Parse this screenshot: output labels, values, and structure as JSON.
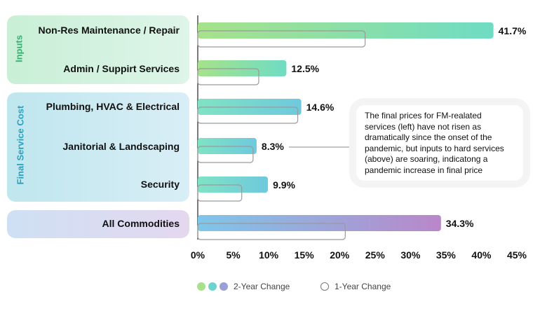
{
  "groups": {
    "inputs": "Inputs",
    "final": "Final Service Cost"
  },
  "chart_data": {
    "type": "bar",
    "orientation": "horizontal",
    "categories": [
      "Non-Res Maintenance / Repair",
      "Admin / Suppirt Services",
      "Plumbing, HVAC & Electrical",
      "Janitorial & Landscaping",
      "Security",
      "All Commodities"
    ],
    "series": [
      {
        "name": "2-Year Change",
        "values": [
          41.7,
          12.5,
          14.6,
          8.3,
          9.9,
          34.3
        ]
      },
      {
        "name": "1-Year Change",
        "values": [
          23.6,
          8.6,
          14.1,
          7.8,
          6.2,
          20.8
        ]
      }
    ],
    "value_labels": [
      "41.7%",
      "12.5%",
      "14.6%",
      "8.3%",
      "9.9%",
      "34.3%"
    ],
    "xlim": [
      0,
      45
    ],
    "xticks": [
      "0%",
      "5%",
      "10%",
      "15%",
      "20%",
      "25%",
      "30%",
      "35%",
      "40%",
      "45%"
    ],
    "grid": false,
    "legend_position": "bottom",
    "colors": {
      "inputs": [
        "#a6e28a",
        "#6fdcc4"
      ],
      "final": [
        "#7fe3c4",
        "#6ec9dd"
      ],
      "all": [
        "#7ec6ea",
        "#b987c9"
      ],
      "outline": "#9a9a9a"
    },
    "annotation": "The final prices for FM-realated services (left) have not risen as dramatically since the onset of the pandemic, but inputs to hard services (above) are soaring, indicatong a pandemic increase in final price"
  },
  "legend": {
    "two_year": "2-Year Change",
    "one_year": "1-Year Change"
  }
}
